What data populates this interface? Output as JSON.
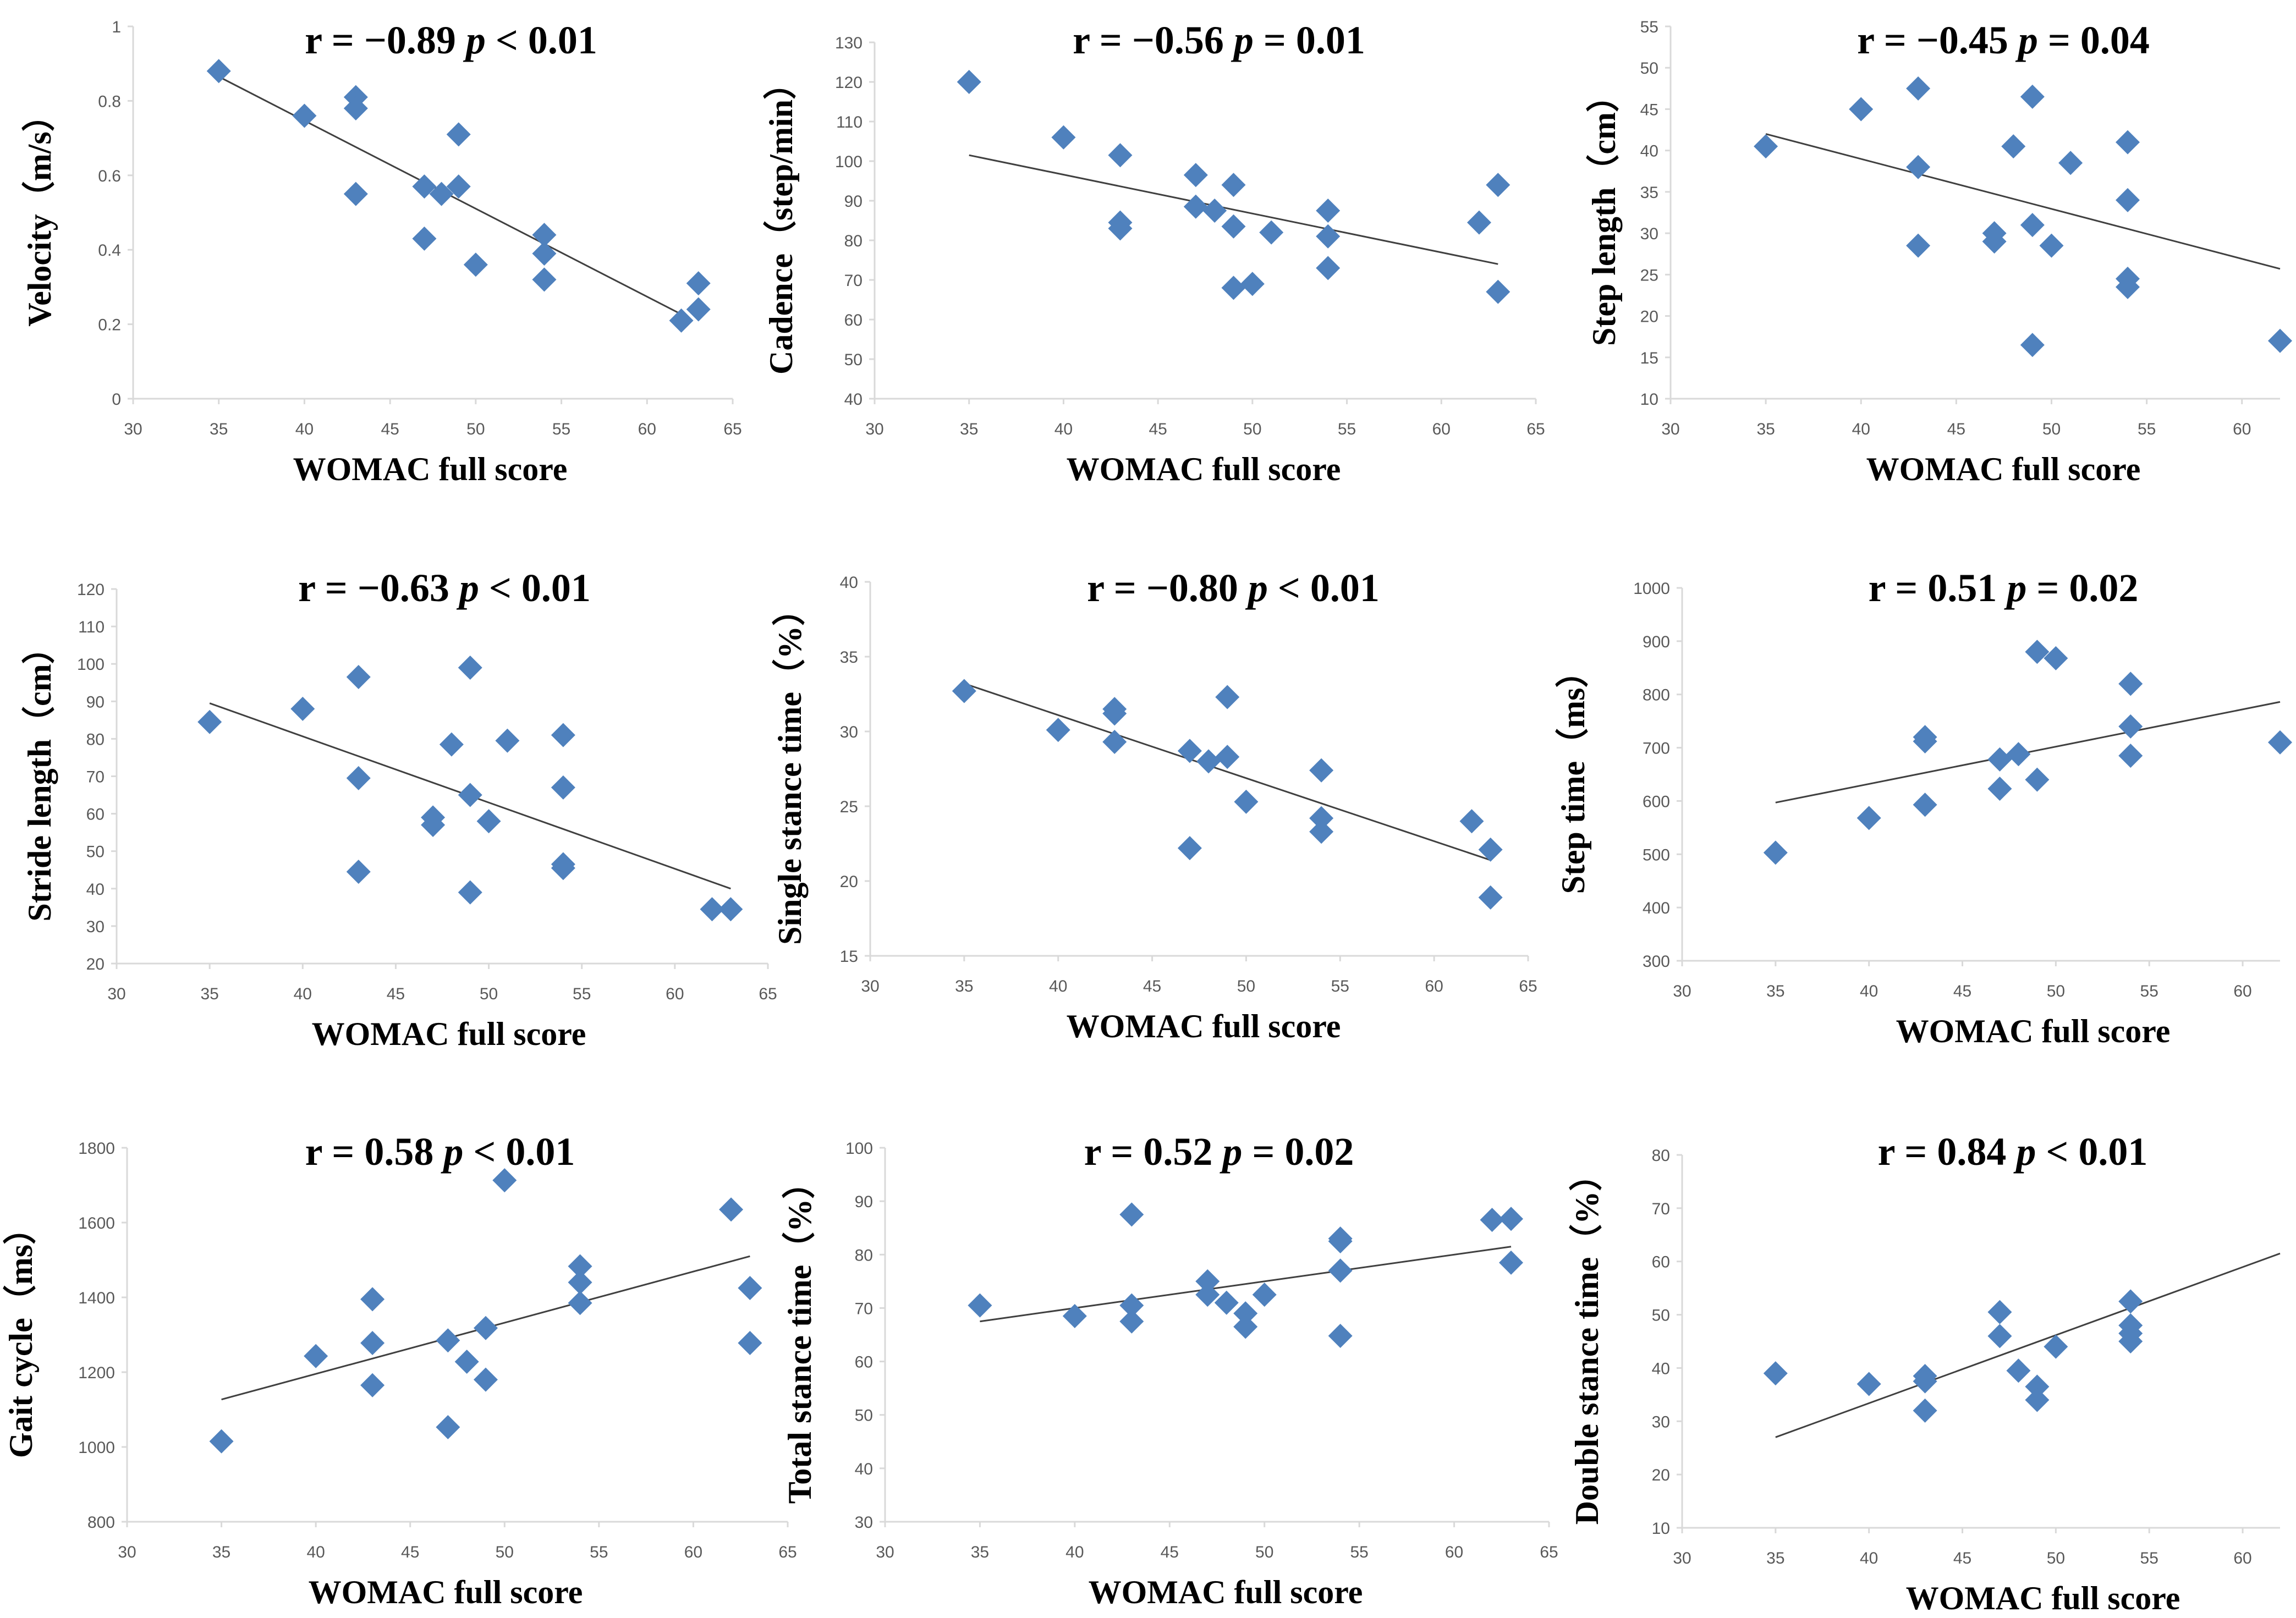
{
  "colors": {
    "marker": "#4f81bd",
    "trendline": "#404040",
    "axis": "#d9d9d9",
    "tick_text": "#595959"
  },
  "chart_data": [
    {
      "type": "scatter",
      "panel": "velocity",
      "title_r": "r = −0.89",
      "title_p_symbol": "p",
      "title_p_value": "< 0.01",
      "xlabel": "WOMAC full  score",
      "ylabel": "Velocity（m/s）",
      "xlim": [
        30,
        65
      ],
      "ylim": [
        0,
        1
      ],
      "xticks": [
        30,
        35,
        40,
        45,
        50,
        55,
        60,
        65
      ],
      "yticks": [
        0,
        0.2,
        0.4,
        0.6,
        0.8,
        1
      ],
      "xtick_labels": [
        "30",
        "35",
        "40",
        "45",
        "50",
        "55",
        "60",
        "65"
      ],
      "ytick_labels": [
        "0",
        "0.2",
        "0.4",
        "0.6",
        "0.8",
        "1"
      ],
      "x": [
        35,
        40,
        43,
        43,
        43,
        47,
        47,
        48,
        49,
        49,
        50,
        54,
        54,
        54,
        62,
        63,
        63
      ],
      "y": [
        0.88,
        0.76,
        0.81,
        0.78,
        0.55,
        0.57,
        0.43,
        0.55,
        0.71,
        0.57,
        0.36,
        0.44,
        0.39,
        0.32,
        0.21,
        0.31,
        0.24
      ],
      "trendline": {
        "x": [
          35,
          62.5
        ],
        "y": [
          0.865,
          0.215
        ]
      }
    },
    {
      "type": "scatter",
      "panel": "cadence",
      "title_r": "r = −0.56",
      "title_p_symbol": "p",
      "title_p_value": "= 0.01",
      "xlabel": "WOMAC full  score",
      "ylabel": "Cadence（step/min）",
      "xlim": [
        30,
        65
      ],
      "ylim": [
        40,
        130
      ],
      "xticks": [
        30,
        35,
        40,
        45,
        50,
        55,
        60,
        65
      ],
      "yticks": [
        40,
        50,
        60,
        70,
        80,
        90,
        100,
        110,
        120,
        130
      ],
      "xtick_labels": [
        "30",
        "35",
        "40",
        "45",
        "50",
        "55",
        "60",
        "65"
      ],
      "ytick_labels": [
        "40",
        "50",
        "60",
        "70",
        "80",
        "90",
        "100",
        "110",
        "120",
        "130"
      ],
      "x": [
        35,
        40,
        43,
        43,
        43,
        47,
        47,
        48,
        49,
        49,
        49,
        50,
        51,
        54,
        54,
        54,
        62,
        63,
        63
      ],
      "y": [
        120,
        106,
        101.5,
        84.5,
        83,
        96.5,
        88.5,
        87.5,
        94,
        83.5,
        68,
        69,
        82,
        87.5,
        81,
        73,
        84.5,
        94,
        67
      ],
      "trendline": {
        "x": [
          35,
          63
        ],
        "y": [
          101.5,
          74
        ]
      }
    },
    {
      "type": "scatter",
      "panel": "step-length",
      "title_r": "r = −0.45",
      "title_p_symbol": "p",
      "title_p_value": "= 0.04",
      "xlabel": "WOMAC full  score",
      "ylabel": "Step length（cm）",
      "xlim": [
        30,
        62
      ],
      "ylim": [
        10,
        55
      ],
      "xticks": [
        30,
        35,
        40,
        45,
        50,
        55,
        60
      ],
      "yticks": [
        10,
        15,
        20,
        25,
        30,
        35,
        40,
        45,
        50,
        55
      ],
      "xtick_labels": [
        "30",
        "35",
        "40",
        "45",
        "50",
        "55",
        "60"
      ],
      "ytick_labels": [
        "10",
        "15",
        "20",
        "25",
        "30",
        "35",
        "40",
        "45",
        "50",
        "55"
      ],
      "x": [
        35,
        40,
        43,
        43,
        43,
        47,
        47,
        48,
        49,
        49,
        49,
        50,
        51,
        54,
        54,
        54,
        54,
        62
      ],
      "y": [
        40.5,
        45,
        47.5,
        38,
        28.5,
        30,
        29,
        40.5,
        46.5,
        31,
        16.5,
        28.5,
        38.5,
        41,
        34,
        24.5,
        23.5,
        17
      ],
      "trendline": {
        "x": [
          35,
          62
        ],
        "y": [
          42,
          25.7
        ]
      }
    },
    {
      "type": "scatter",
      "panel": "stride-length",
      "title_r": "r = −0.63",
      "title_p_symbol": "p",
      "title_p_value": "< 0.01",
      "xlabel": "WOMAC full  score",
      "ylabel": "Stride length（cm）",
      "xlim": [
        30,
        65
      ],
      "ylim": [
        20,
        120
      ],
      "xticks": [
        30,
        35,
        40,
        45,
        50,
        55,
        60,
        65
      ],
      "yticks": [
        20,
        30,
        40,
        50,
        60,
        70,
        80,
        90,
        100,
        110,
        120
      ],
      "xtick_labels": [
        "30",
        "35",
        "40",
        "45",
        "50",
        "55",
        "60",
        "65"
      ],
      "ytick_labels": [
        "20",
        "30",
        "40",
        "50",
        "60",
        "70",
        "80",
        "90",
        "100",
        "110",
        "120"
      ],
      "x": [
        35,
        40,
        43,
        43,
        43,
        47,
        47,
        48,
        49,
        49,
        49,
        50,
        51,
        54,
        54,
        54,
        54,
        62,
        63
      ],
      "y": [
        84.5,
        88,
        96.5,
        69.5,
        44.5,
        59,
        57,
        78.5,
        99,
        65,
        39,
        58,
        79.5,
        81,
        67,
        46.5,
        45.5,
        34.5,
        34.5
      ],
      "trendline": {
        "x": [
          35,
          63
        ],
        "y": [
          89.5,
          40
        ]
      }
    },
    {
      "type": "scatter",
      "panel": "single-stance-time",
      "title_r": "r = −0.80",
      "title_p_symbol": "p",
      "title_p_value": "< 0.01",
      "xlabel": "WOMAC full  score",
      "ylabel": "Single stance time（%）",
      "xlim": [
        30,
        65
      ],
      "ylim": [
        15,
        40
      ],
      "xticks": [
        30,
        35,
        40,
        45,
        50,
        55,
        60,
        65
      ],
      "yticks": [
        15,
        20,
        25,
        30,
        35,
        40
      ],
      "xtick_labels": [
        "30",
        "35",
        "40",
        "45",
        "50",
        "55",
        "60",
        "65"
      ],
      "ytick_labels": [
        "15",
        "20",
        "25",
        "30",
        "35",
        "40"
      ],
      "x": [
        35,
        40,
        43,
        43,
        43,
        47,
        47,
        48,
        49,
        49,
        50,
        54,
        54,
        54,
        62,
        63,
        63
      ],
      "y": [
        32.7,
        30.1,
        31.5,
        31.2,
        29.3,
        28.7,
        22.2,
        28,
        32.3,
        28.3,
        25.3,
        27.4,
        24.2,
        23.3,
        24,
        22.1,
        18.9
      ],
      "trendline": {
        "x": [
          35,
          63
        ],
        "y": [
          33.2,
          21.4
        ]
      }
    },
    {
      "type": "scatter",
      "panel": "step-time",
      "title_r": "r = 0.51",
      "title_p_symbol": "p",
      "title_p_value": "= 0.02",
      "xlabel": "WOMAC full  score",
      "ylabel": "Step time（ms）",
      "xlim": [
        30,
        62
      ],
      "ylim": [
        300,
        1000
      ],
      "xticks": [
        30,
        35,
        40,
        45,
        50,
        55,
        60
      ],
      "yticks": [
        300,
        400,
        500,
        600,
        700,
        800,
        900,
        1000
      ],
      "xtick_labels": [
        "30",
        "35",
        "40",
        "45",
        "50",
        "55",
        "60"
      ],
      "ytick_labels": [
        "300",
        "400",
        "500",
        "600",
        "700",
        "800",
        "900",
        "1000"
      ],
      "x": [
        35,
        40,
        43,
        43,
        43,
        47,
        47,
        48,
        49,
        49,
        50,
        54,
        54,
        54,
        62
      ],
      "y": [
        503,
        568,
        720,
        712,
        593,
        678,
        623,
        688,
        880,
        640,
        868,
        820,
        740,
        685,
        710
      ],
      "trendline": {
        "x": [
          35,
          62
        ],
        "y": [
          597,
          786
        ]
      }
    },
    {
      "type": "scatter",
      "panel": "gait-cycle",
      "title_r": "r = 0.58",
      "title_p_symbol": "p",
      "title_p_value": "< 0.01",
      "xlabel": "WOMAC full  score",
      "ylabel": "Gait cycle（ms）",
      "xlim": [
        30,
        65
      ],
      "ylim": [
        800,
        1800
      ],
      "xticks": [
        30,
        35,
        40,
        45,
        50,
        55,
        60,
        65
      ],
      "yticks": [
        800,
        1000,
        1200,
        1400,
        1600,
        1800
      ],
      "xtick_labels": [
        "30",
        "35",
        "40",
        "45",
        "50",
        "55",
        "60",
        "65"
      ],
      "ytick_labels": [
        "800",
        "1000",
        "1200",
        "1400",
        "1600",
        "1800"
      ],
      "x": [
        35,
        40,
        43,
        43,
        43,
        47,
        47,
        48,
        49,
        49,
        50,
        54,
        54,
        54,
        62,
        63,
        63
      ],
      "y": [
        1015,
        1243,
        1395,
        1278,
        1165,
        1285,
        1053,
        1228,
        1318,
        1180,
        1713,
        1483,
        1440,
        1385,
        1635,
        1425,
        1278
      ],
      "trendline": {
        "x": [
          35,
          63
        ],
        "y": [
          1127,
          1510
        ]
      }
    },
    {
      "type": "scatter",
      "panel": "total-stance-time",
      "title_r": "r = 0.52",
      "title_p_symbol": "p",
      "title_p_value": "= 0.02",
      "xlabel": "WOMAC full  score",
      "ylabel": "Total stance time（%）",
      "xlim": [
        30,
        65
      ],
      "ylim": [
        30,
        100
      ],
      "xticks": [
        30,
        35,
        40,
        45,
        50,
        55,
        60,
        65
      ],
      "yticks": [
        30,
        40,
        50,
        60,
        70,
        80,
        90,
        100
      ],
      "xtick_labels": [
        "30",
        "35",
        "40",
        "45",
        "50",
        "55",
        "60",
        "65"
      ],
      "ytick_labels": [
        "30",
        "40",
        "50",
        "60",
        "70",
        "80",
        "90",
        "100"
      ],
      "x": [
        35,
        40,
        43,
        43,
        43,
        47,
        47,
        48,
        49,
        49,
        50,
        54,
        54,
        54,
        54,
        62,
        63,
        63
      ],
      "y": [
        70.5,
        68.5,
        87.5,
        70.5,
        67.5,
        75,
        72.5,
        71,
        69,
        66.5,
        72.5,
        83,
        82.5,
        77,
        64.8,
        86.5,
        86.7,
        78.5
      ],
      "trendline": {
        "x": [
          35,
          63
        ],
        "y": [
          67.5,
          81.5
        ]
      }
    },
    {
      "type": "scatter",
      "panel": "double-stance-time",
      "title_r": "r = 0.84",
      "title_p_symbol": "p",
      "title_p_value": "< 0.01",
      "xlabel": "WOMAC full  score",
      "ylabel": "Double stance time（%）",
      "xlim": [
        30,
        62
      ],
      "ylim": [
        10,
        80
      ],
      "xticks": [
        30,
        35,
        40,
        45,
        50,
        55,
        60
      ],
      "yticks": [
        10,
        20,
        30,
        40,
        50,
        60,
        70,
        80
      ],
      "xtick_labels": [
        "30",
        "35",
        "40",
        "45",
        "50",
        "55",
        "60"
      ],
      "ytick_labels": [
        "10",
        "20",
        "30",
        "40",
        "50",
        "60",
        "70",
        "80"
      ],
      "x": [
        35,
        40,
        43,
        43,
        43,
        47,
        47,
        48,
        49,
        49,
        50,
        54,
        54,
        54,
        54
      ],
      "y": [
        39,
        37,
        38.5,
        37.5,
        32,
        50.5,
        46,
        39.5,
        36.5,
        34,
        44,
        52.5,
        48,
        46.5,
        45
      ],
      "trendline": {
        "x": [
          35,
          62
        ],
        "y": [
          27,
          61.5
        ]
      }
    }
  ]
}
